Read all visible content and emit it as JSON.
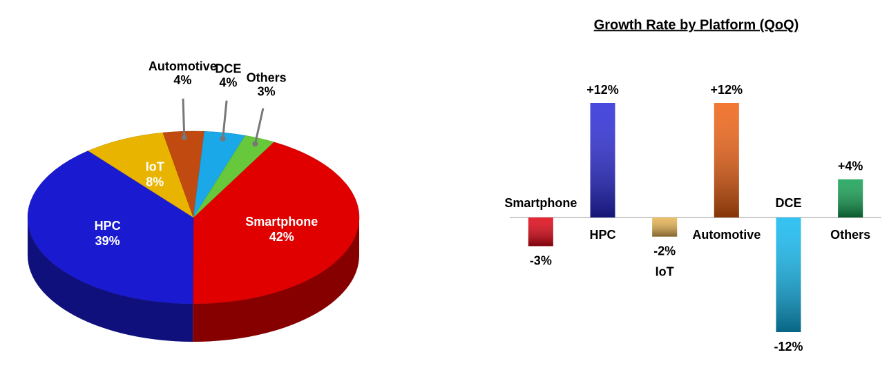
{
  "chart_data": [
    {
      "type": "pie",
      "categories": [
        "Smartphone",
        "HPC",
        "IoT",
        "Automotive",
        "DCE",
        "Others"
      ],
      "values": [
        42,
        39,
        8,
        4,
        4,
        3
      ],
      "value_labels": [
        "42%",
        "39%",
        "8%",
        "4%",
        "4%",
        "3%"
      ],
      "colors": [
        "#e00000",
        "#1a1ad0",
        "#e8b400",
        "#c04a10",
        "#1aa8e8",
        "#66c83a"
      ]
    },
    {
      "type": "bar",
      "title": "Growth Rate by Platform (QoQ)",
      "categories": [
        "Smartphone",
        "HPC",
        "IoT",
        "Automotive",
        "DCE",
        "Others"
      ],
      "values": [
        -3,
        12,
        -2,
        12,
        -12,
        4
      ],
      "value_labels": [
        "-3%",
        "+12%",
        "-2%",
        "+12%",
        "-12%",
        "+4%"
      ],
      "colors": [
        "#e00010",
        "#2828d8",
        "#e8b450",
        "#f06010",
        "#10b8f0",
        "#10a050"
      ]
    }
  ]
}
